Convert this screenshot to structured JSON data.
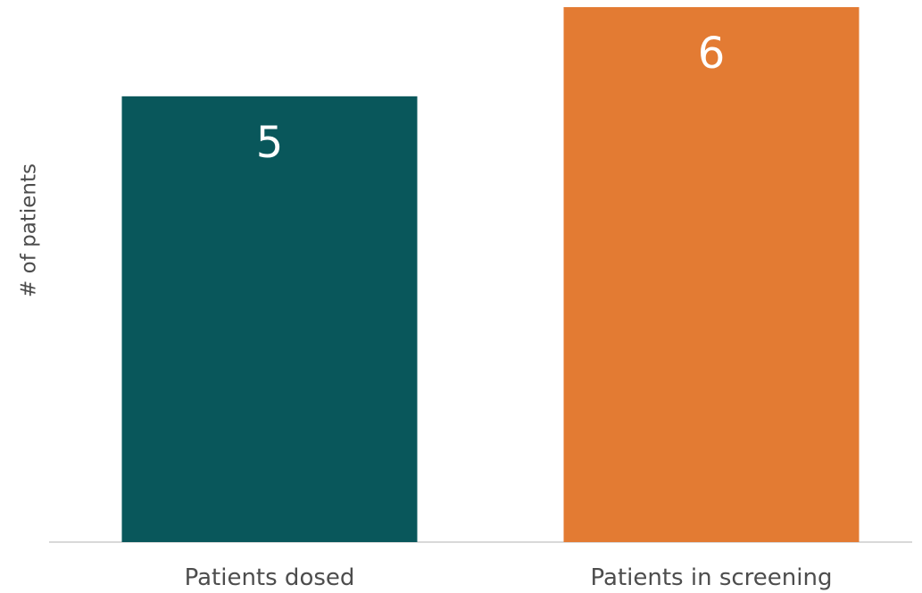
{
  "chart_data": {
    "type": "bar",
    "categories": [
      "Patients dosed",
      "Patients in screening"
    ],
    "values": [
      5,
      6
    ],
    "data_labels": [
      "5",
      "6"
    ],
    "colors": [
      "#09575b",
      "#e37b33"
    ],
    "xlabel": "",
    "ylabel": "# of patients",
    "ylim": [
      0,
      6
    ],
    "grid": false,
    "legend": "none"
  }
}
